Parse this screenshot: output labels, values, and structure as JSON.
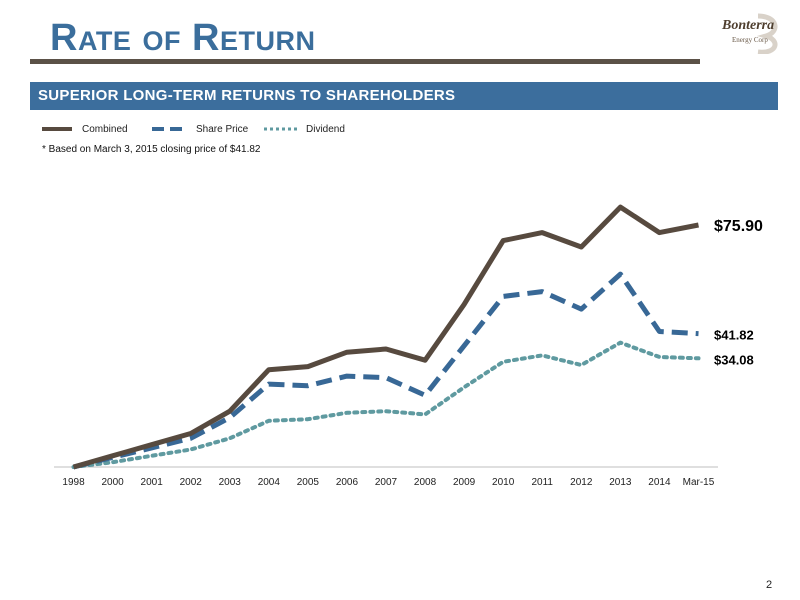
{
  "header": {
    "title": "Rate of Return",
    "subtitle": "SUPERIOR LONG-TERM RETURNS TO SHAREHOLDERS",
    "logo_text": "Bonterra",
    "logo_subtext": "Energy Corp"
  },
  "footnote": "* Based on March 3, 2015 closing price of $41.82",
  "page_number": "2",
  "colors": {
    "combined": "#574a3f",
    "share_price": "#386896",
    "dividend": "#5f9aa0",
    "title": "#3b6e9c",
    "subtitle_bar": "#3c6e9d"
  },
  "chart_data": {
    "type": "line",
    "categories": [
      "1998",
      "2000",
      "2001",
      "2002",
      "2003",
      "2004",
      "2005",
      "2006",
      "2007",
      "2008",
      "2009",
      "2010",
      "2011",
      "2012",
      "2013",
      "2014",
      "Mar-15"
    ],
    "series": [
      {
        "name": "Combined",
        "style": "solid",
        "values": [
          0,
          3.5,
          7.0,
          10.5,
          17.5,
          30.5,
          31.5,
          36.0,
          37.0,
          33.5,
          51.0,
          71.0,
          73.5,
          69.0,
          81.5,
          73.5,
          75.9
        ]
      },
      {
        "name": "Share Price",
        "style": "dashed",
        "values": [
          0,
          3.0,
          6.0,
          9.0,
          15.5,
          26.0,
          25.5,
          28.5,
          28.0,
          22.5,
          38.0,
          53.5,
          55.0,
          49.5,
          60.5,
          42.5,
          41.82
        ]
      },
      {
        "name": "Dividend",
        "style": "dotted",
        "values": [
          0,
          1.5,
          3.5,
          5.5,
          9.0,
          14.5,
          15.0,
          17.0,
          17.5,
          16.5,
          25.0,
          33.0,
          35.0,
          32.0,
          39.0,
          34.5,
          34.08
        ]
      }
    ],
    "end_labels": [
      "$75.90",
      "$41.82",
      "$34.08"
    ],
    "ylim": [
      0,
      90
    ],
    "grid": false,
    "legend_position": "top-left"
  }
}
